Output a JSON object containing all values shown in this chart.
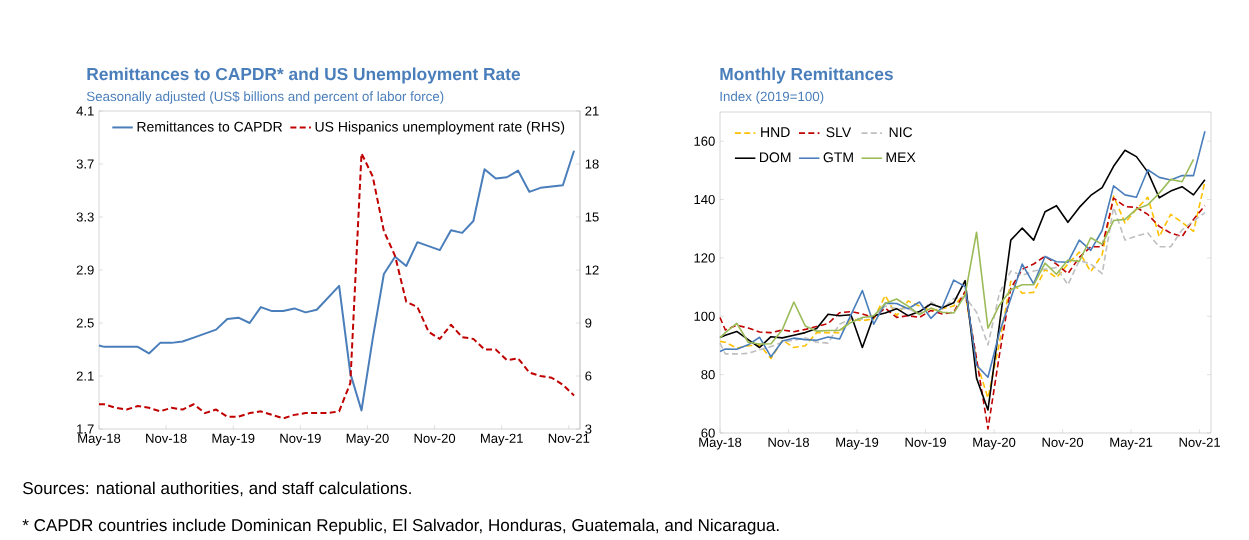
{
  "chart_data": [
    {
      "type": "line",
      "title": "Remittances to CAPDR* and US Unemployment Rate",
      "subtitle": "Seasonally adjusted (US$ billions and percent of labor force)",
      "x": [
        "2018-05-01",
        "2018-05-15",
        "2018-06-15",
        "2018-07-15",
        "2018-08-15",
        "2018-09-15",
        "2018-10-15",
        "2018-11-15",
        "2018-12-15",
        "2019-01-15",
        "2019-02-15",
        "2019-03-15",
        "2019-04-15",
        "2019-05-15",
        "2019-06-15",
        "2019-07-15",
        "2019-08-15",
        "2019-09-15",
        "2019-10-15",
        "2019-11-15",
        "2019-12-15",
        "2020-01-15",
        "2020-02-15",
        "2020-03-15",
        "2020-04-15",
        "2020-05-15",
        "2020-06-15",
        "2020-07-15",
        "2020-08-15",
        "2020-09-15",
        "2020-10-15",
        "2020-11-15",
        "2020-12-15",
        "2021-01-15",
        "2021-02-15",
        "2021-03-15",
        "2021-04-15",
        "2021-05-15",
        "2021-06-15",
        "2021-07-15",
        "2021-08-15",
        "2021-09-15",
        "2021-10-15",
        "2021-11-15"
      ],
      "xlim": [
        "2018-05-01",
        "2021-12-01"
      ],
      "xticks": [
        {
          "value": "2018-05-01",
          "label": "May-18"
        },
        {
          "value": "2018-11-01",
          "label": "Nov-18"
        },
        {
          "value": "2019-05-01",
          "label": "May-19"
        },
        {
          "value": "2019-11-01",
          "label": "Nov-19"
        },
        {
          "value": "2020-05-01",
          "label": "May-20"
        },
        {
          "value": "2020-11-01",
          "label": "Nov-20"
        },
        {
          "value": "2021-05-01",
          "label": "May-21"
        },
        {
          "value": "2021-11-01",
          "label": "Nov-21"
        }
      ],
      "ylim": [
        1.7,
        4.1
      ],
      "yticks": [
        1.7,
        2.1,
        2.5,
        2.9,
        3.3,
        3.7,
        4.1
      ],
      "y2lim": [
        3,
        21
      ],
      "y2ticks": [
        3,
        6,
        9,
        12,
        15,
        18,
        21
      ],
      "legend": "top",
      "grid": false,
      "series": [
        {
          "name": "Remittances to CAPDR",
          "color": "#4a7ebb",
          "line_style": "solid",
          "values": [
            2.33,
            2.32,
            2.32,
            2.32,
            2.32,
            2.27,
            2.35,
            2.35,
            2.36,
            2.39,
            2.42,
            2.45,
            2.53,
            2.54,
            2.5,
            2.62,
            2.59,
            2.59,
            2.61,
            2.58,
            2.6,
            2.69,
            2.78,
            2.12,
            1.84,
            2.38,
            2.87,
            3.0,
            2.93,
            3.11,
            3.08,
            3.05,
            3.2,
            3.18,
            3.27,
            3.66,
            3.59,
            3.6,
            3.65,
            3.49,
            3.52,
            3.53,
            3.54,
            3.8
          ]
        },
        {
          "name": "US Hispanics unemployment rate (RHS)",
          "color": "#c00000",
          "line_style": "dashed",
          "axis": "y2",
          "values": [
            4.4,
            4.4,
            4.2,
            4.1,
            4.3,
            4.2,
            4.0,
            4.2,
            4.1,
            4.4,
            3.9,
            4.1,
            3.7,
            3.7,
            3.9,
            4.0,
            3.8,
            3.6,
            3.8,
            3.9,
            3.9,
            3.9,
            4.0,
            5.6,
            18.6,
            17.3,
            14.2,
            12.8,
            10.2,
            9.9,
            8.5,
            8.1,
            8.9,
            8.2,
            8.1,
            7.5,
            7.5,
            6.9,
            7.0,
            6.2,
            6.0,
            5.9,
            5.5,
            4.9
          ]
        }
      ],
      "annotations": [
        "Sources: national authorities, and staff calculations.",
        "* CAPDR countries include Dominican Republic, El Salvador, Honduras, Guatemala, and Nicaragua."
      ]
    },
    {
      "type": "line",
      "title": "Monthly Remittances",
      "subtitle": "Index (2019=100)",
      "x": [
        "2018-05-01",
        "2018-05-15",
        "2018-06-15",
        "2018-07-15",
        "2018-08-15",
        "2018-09-15",
        "2018-10-15",
        "2018-11-15",
        "2018-12-15",
        "2019-01-15",
        "2019-02-15",
        "2019-03-15",
        "2019-04-15",
        "2019-05-15",
        "2019-06-15",
        "2019-07-15",
        "2019-08-15",
        "2019-09-15",
        "2019-10-15",
        "2019-11-15",
        "2019-12-15",
        "2020-01-15",
        "2020-02-15",
        "2020-03-15",
        "2020-04-15",
        "2020-05-15",
        "2020-06-15",
        "2020-07-15",
        "2020-08-15",
        "2020-09-15",
        "2020-10-15",
        "2020-11-15",
        "2020-12-15",
        "2021-01-15",
        "2021-02-15",
        "2021-03-15",
        "2021-04-15",
        "2021-05-15",
        "2021-06-15",
        "2021-07-15",
        "2021-08-15",
        "2021-09-15",
        "2021-10-15",
        "2021-11-15"
      ],
      "xlim": [
        "2018-05-01",
        "2021-12-01"
      ],
      "xticks": [
        {
          "value": "2018-05-01",
          "label": "May-18"
        },
        {
          "value": "2018-11-01",
          "label": "Nov-18"
        },
        {
          "value": "2019-05-01",
          "label": "May-19"
        },
        {
          "value": "2019-11-01",
          "label": "Nov-19"
        },
        {
          "value": "2020-05-01",
          "label": "May-20"
        },
        {
          "value": "2020-11-01",
          "label": "Nov-20"
        },
        {
          "value": "2021-05-01",
          "label": "May-21"
        },
        {
          "value": "2021-11-01",
          "label": "Nov-21"
        }
      ],
      "ylim": [
        60,
        170
      ],
      "yticks": [
        60,
        80,
        100,
        120,
        140,
        160
      ],
      "legend": "top left",
      "grid": false,
      "series": [
        {
          "name": "HND",
          "color": "#ffc000",
          "line_style": "dashed",
          "values": [
            91.4,
            91.1,
            89.1,
            89.9,
            90.2,
            85.5,
            91.8,
            89.3,
            89.9,
            94.4,
            94.4,
            94.4,
            99.1,
            98.5,
            99.1,
            107.1,
            100.2,
            105.2,
            103.5,
            102.0,
            102.6,
            103.5,
            107.9,
            84.4,
            72.0,
            90.8,
            112.0,
            107.9,
            108.2,
            116.1,
            113.2,
            117.9,
            122.0,
            115.3,
            121.1,
            141.2,
            132.0,
            136.7,
            140.8,
            127.3,
            134.9,
            132.2,
            129.1,
            146.1
          ]
        },
        {
          "name": "SLV",
          "color": "#c00000",
          "line_style": "dashed",
          "values": [
            99.6,
            95.3,
            96.9,
            96.0,
            94.6,
            94.4,
            95.3,
            94.7,
            95.5,
            96.5,
            97.5,
            101.2,
            101.6,
            100.8,
            99.6,
            102.8,
            99.6,
            100.2,
            99.6,
            102.0,
            100.8,
            101.4,
            108.5,
            85.5,
            61.4,
            86.7,
            109.6,
            116.1,
            117.9,
            120.6,
            117.9,
            114.6,
            120.2,
            123.8,
            123.8,
            140.5,
            137.6,
            137.3,
            134.9,
            130.8,
            128.5,
            127.3,
            133.2,
            137.9
          ]
        },
        {
          "name": "NIC",
          "color": "#bfbfbf",
          "line_style": "dashed",
          "values": [
            90.8,
            87.1,
            87.1,
            87.3,
            88.5,
            89.6,
            91.1,
            91.8,
            92.6,
            91.1,
            90.8,
            97.3,
            99.1,
            99.1,
            100.2,
            103.5,
            102.6,
            102.6,
            100.8,
            104.9,
            102.4,
            106.1,
            106.7,
            101.4,
            90.2,
            107.9,
            115.5,
            114.0,
            115.5,
            116.1,
            116.7,
            110.8,
            119.1,
            117.9,
            114.6,
            137.3,
            126.1,
            127.5,
            128.5,
            123.8,
            123.8,
            129.6,
            132.6,
            135.5
          ]
        },
        {
          "name": "DOM",
          "color": "#000000",
          "line_style": "solid",
          "values": [
            92.7,
            93.5,
            94.8,
            92.0,
            89.3,
            93.0,
            92.6,
            93.5,
            94.4,
            95.8,
            100.7,
            100.2,
            100.5,
            89.3,
            100.2,
            101.1,
            102.6,
            100.2,
            101.6,
            104.2,
            102.9,
            104.6,
            112.2,
            78.8,
            67.9,
            97.0,
            126.1,
            130.2,
            126.1,
            135.8,
            137.9,
            132.2,
            137.3,
            141.4,
            144.1,
            151.4,
            156.9,
            154.7,
            149.4,
            140.6,
            142.9,
            144.4,
            141.6,
            146.8
          ]
        },
        {
          "name": "GTM",
          "color": "#4a7ebb",
          "line_style": "solid",
          "values": [
            87.9,
            88.8,
            88.7,
            90.2,
            92.8,
            86.1,
            91.5,
            92.5,
            92.0,
            91.8,
            92.9,
            92.2,
            100.5,
            108.8,
            97.3,
            104.5,
            104.4,
            102.6,
            104.9,
            99.3,
            103.1,
            112.4,
            110.2,
            83.2,
            79.1,
            94.4,
            106.1,
            117.9,
            111.1,
            120.5,
            118.7,
            118.5,
            126.1,
            122.6,
            129.4,
            144.7,
            141.6,
            140.8,
            150.2,
            147.6,
            146.7,
            148.2,
            148.2,
            163.4
          ]
        },
        {
          "name": "MEX",
          "color": "#9bbb59",
          "line_style": "solid",
          "values": [
            92.6,
            94.4,
            97.6,
            91.1,
            90.5,
            90.6,
            95.5,
            104.9,
            96.7,
            94.9,
            95.1,
            95.2,
            97.9,
            99.6,
            100.2,
            104.4,
            105.9,
            103.5,
            100.6,
            102.8,
            101.4,
            101.1,
            107.3,
            128.8,
            95.9,
            103.8,
            109.1,
            110.8,
            110.8,
            118.2,
            114.4,
            119.3,
            118.8,
            126.9,
            124.7,
            132.8,
            133.2,
            136.7,
            138.2,
            142.2,
            146.9,
            146.1,
            153.8,
            null
          ]
        }
      ]
    }
  ]
}
